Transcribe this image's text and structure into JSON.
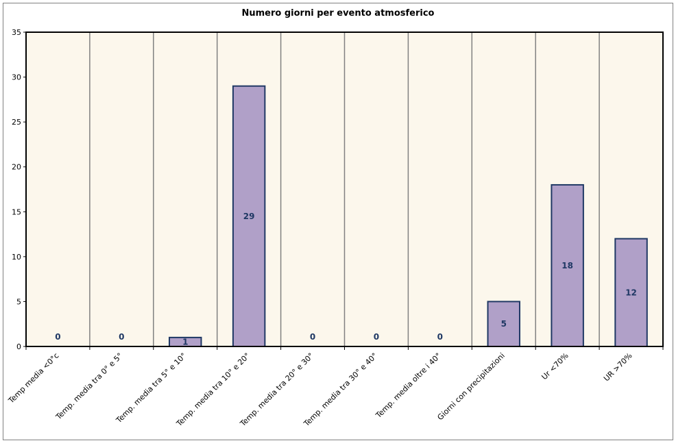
{
  "chart_data": {
    "type": "bar",
    "title": "Numero giorni per evento atmosferico",
    "xlabel": "",
    "ylabel": "",
    "categories": [
      "Temp media <0°c",
      "Temp. media tra 0° e 5°",
      "Temp. media tra 5° e 10°",
      "Temp. media tra 10° e 20°",
      "Temp. media tra 20° e 30°",
      "Temp. media tra 30° e 40°",
      "Temp. media oltre i 40°",
      "Giorni con precipitazioni",
      "Ur <70%",
      "UR >70%"
    ],
    "values": [
      0,
      0,
      1,
      29,
      0,
      0,
      0,
      5,
      18,
      12
    ],
    "data_labels": [
      "0",
      "0",
      "1",
      "29",
      "0",
      "0",
      "0",
      "5",
      "18",
      "12"
    ],
    "ylim": [
      0,
      35
    ],
    "yticks": [
      "0",
      "5",
      "10",
      "15",
      "20",
      "25",
      "30",
      "35"
    ],
    "grid": "vertical",
    "legend": "none",
    "colors": {
      "bar_fill": "#b0a0c8",
      "bar_stroke": "#1f3864",
      "plot_background": "#fcf7ec",
      "grid": "#808080",
      "data_label": "#1f3864"
    }
  }
}
